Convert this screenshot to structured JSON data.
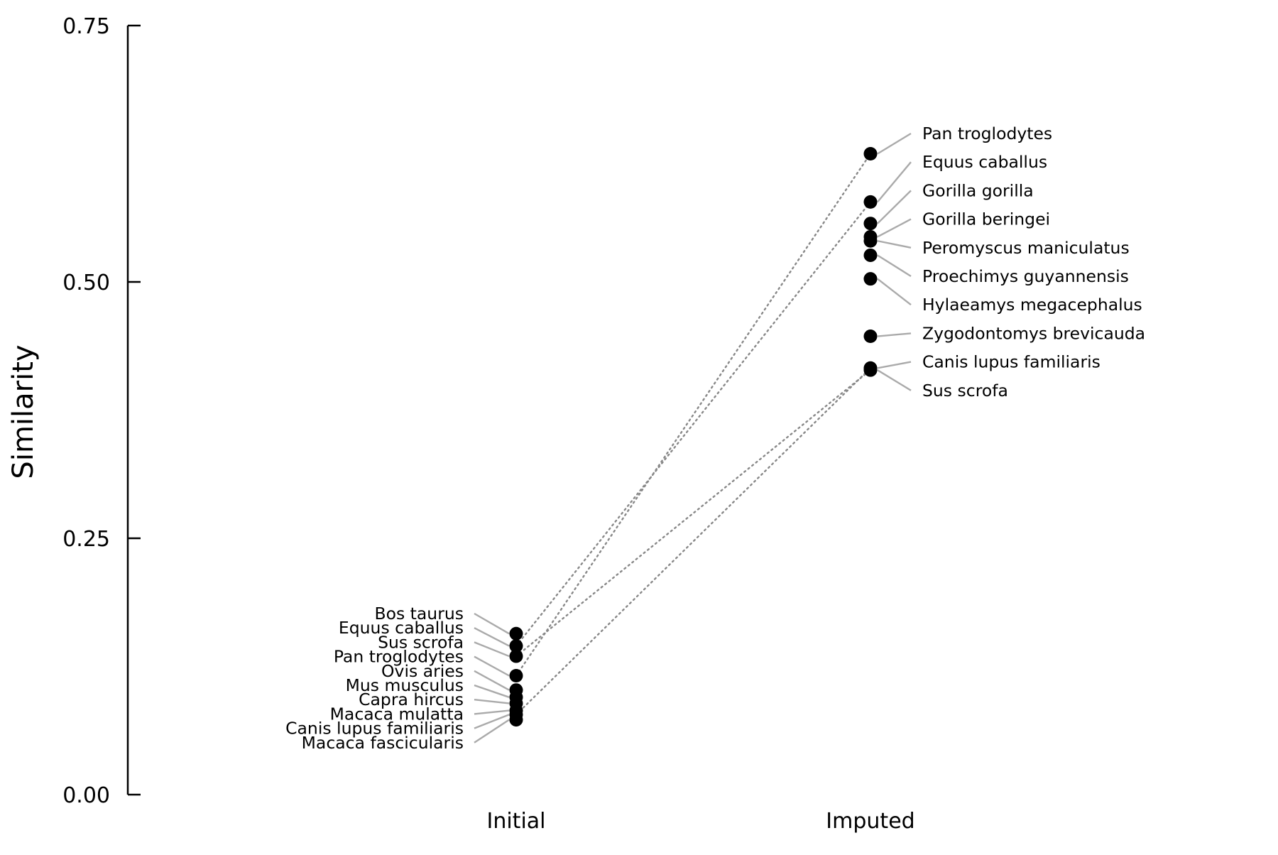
{
  "chart_data": {
    "type": "scatter",
    "title": "",
    "xlabel": "",
    "ylabel": "Similarity",
    "ylim": [
      0,
      0.75
    ],
    "yticks": [
      "0.00",
      "0.25",
      "0.50",
      "0.75"
    ],
    "categories": [
      "Initial",
      "Imputed"
    ],
    "grid": false,
    "legend": "none",
    "colors": {
      "point": "#000000",
      "leader": "#aaaaaa",
      "connector": "#888888"
    },
    "series": [
      {
        "category": "Initial",
        "points": [
          {
            "label": "Bos taurus",
            "y": 0.157
          },
          {
            "label": "Equus caballus",
            "y": 0.145
          },
          {
            "label": "Sus scrofa",
            "y": 0.135
          },
          {
            "label": "Pan troglodytes",
            "y": 0.116
          },
          {
            "label": "Ovis aries",
            "y": 0.102
          },
          {
            "label": "Mus musculus",
            "y": 0.095
          },
          {
            "label": "Capra hircus",
            "y": 0.089
          },
          {
            "label": "Macaca mulatta",
            "y": 0.082
          },
          {
            "label": "Canis lupus familiaris",
            "y": 0.078
          },
          {
            "label": "Macaca fascicularis",
            "y": 0.073
          }
        ]
      },
      {
        "category": "Imputed",
        "points": [
          {
            "label": "Pan troglodytes",
            "y": 0.625
          },
          {
            "label": "Equus caballus",
            "y": 0.578
          },
          {
            "label": "Gorilla gorilla",
            "y": 0.557
          },
          {
            "label": "Gorilla beringei",
            "y": 0.544
          },
          {
            "label": "Peromyscus maniculatus",
            "y": 0.54
          },
          {
            "label": "Proechimys guyannensis",
            "y": 0.526
          },
          {
            "label": "Hylaeamys megacephalus",
            "y": 0.503
          },
          {
            "label": "Zygodontomys brevicauda",
            "y": 0.447
          },
          {
            "label": "Canis lupus familiaris",
            "y": 0.416
          },
          {
            "label": "Sus scrofa",
            "y": 0.414
          }
        ]
      }
    ],
    "connections": [
      {
        "from": "Pan troglodytes",
        "initial": 0.116,
        "imputed": 0.625
      },
      {
        "from": "Equus caballus",
        "initial": 0.145,
        "imputed": 0.578
      },
      {
        "from": "Canis lupus familiaris",
        "initial": 0.078,
        "imputed": 0.416
      },
      {
        "from": "Sus scrofa",
        "initial": 0.135,
        "imputed": 0.414
      }
    ]
  }
}
